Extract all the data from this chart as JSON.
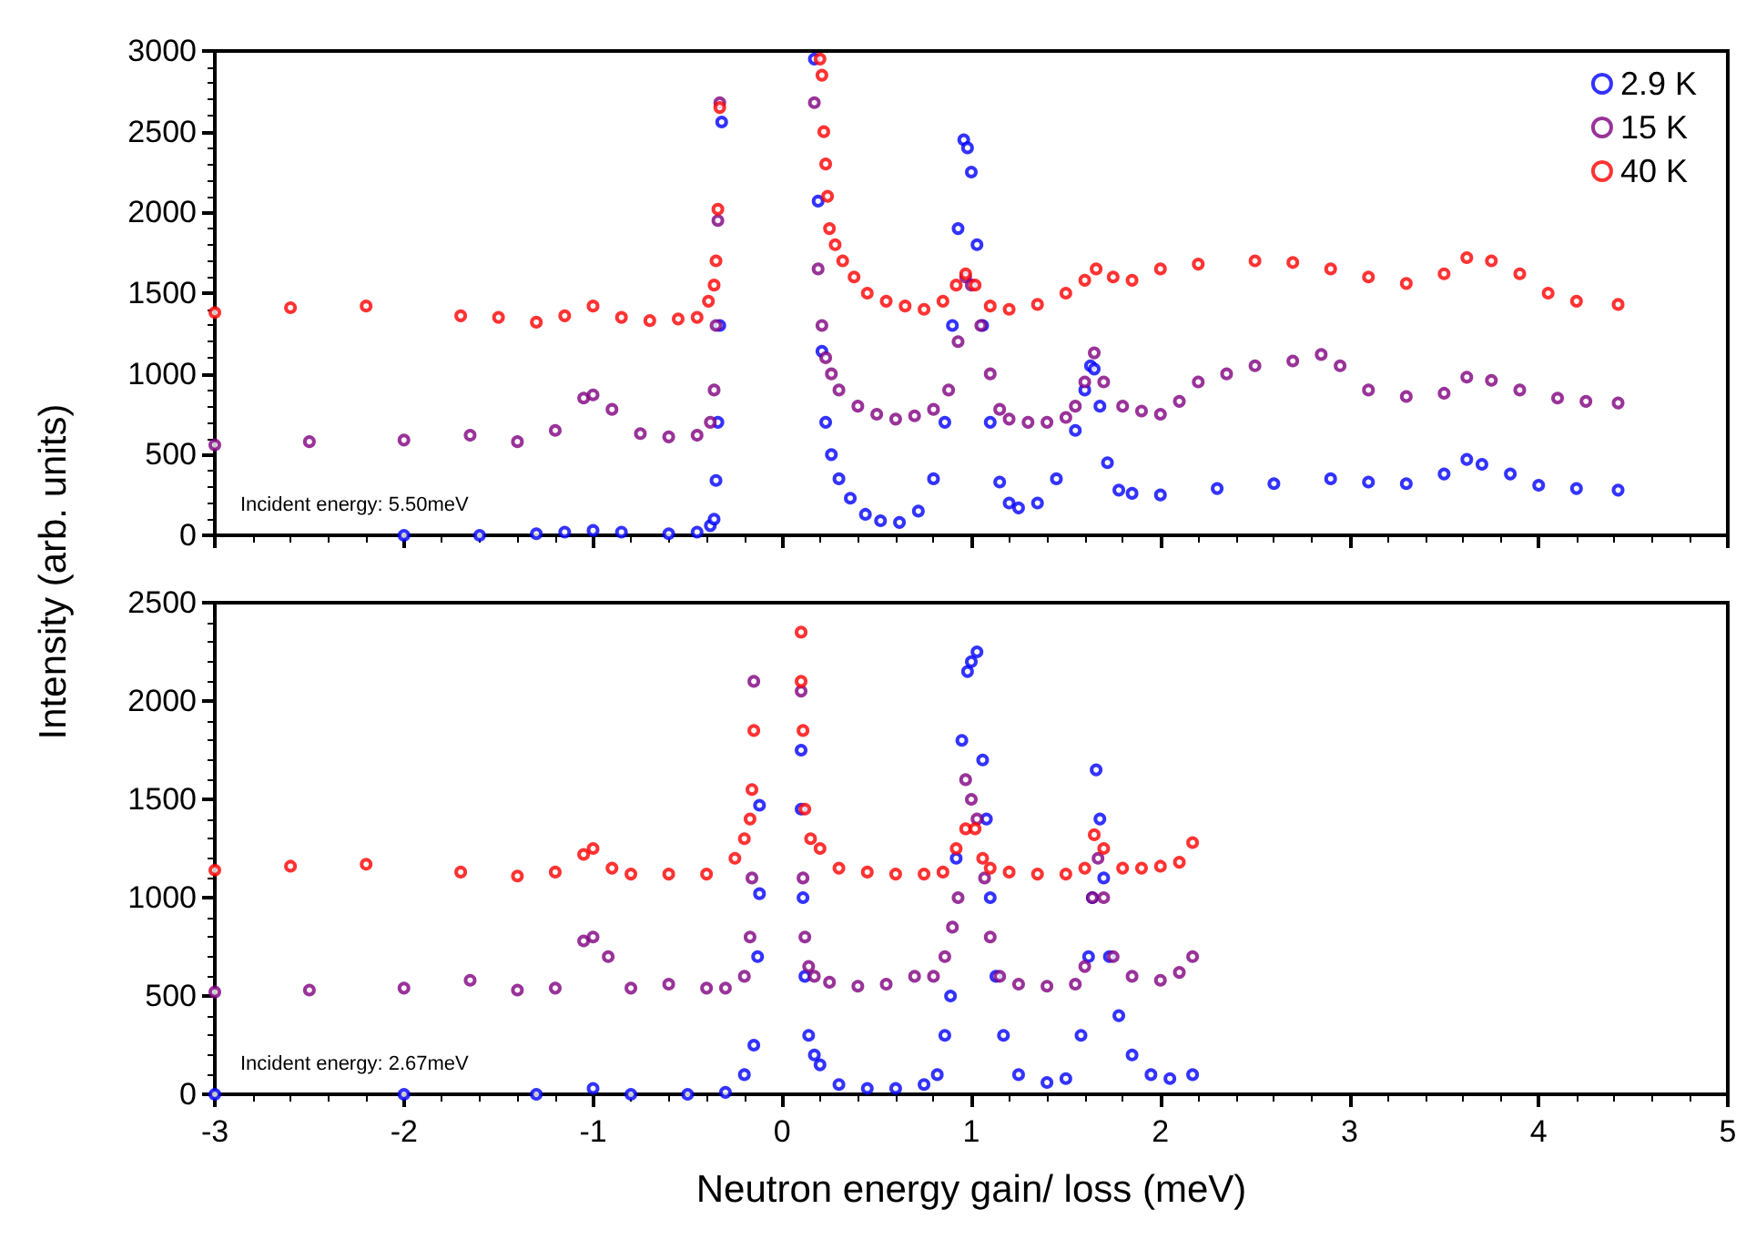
{
  "chart_data": [
    {
      "type": "scatter",
      "ylabel": "Intensity (arb. units)",
      "xlim": [
        -3,
        5
      ],
      "xticks": [
        -3,
        -2,
        -1,
        0,
        1,
        2,
        3,
        4,
        5
      ],
      "ylim": [
        0,
        3000
      ],
      "yticks": [
        0,
        500,
        1000,
        1500,
        2000,
        2500,
        3000
      ],
      "tick_labels": "y",
      "legend": "top right",
      "marker": "circle",
      "annotations": [
        "Incident energy: 5.50meV"
      ],
      "series": [
        {
          "name": "2.9 K",
          "color": "#0000ff",
          "x": [
            -2,
            -1.6,
            -1.3,
            -1.15,
            -1.0,
            -0.85,
            -0.6,
            -0.45,
            -0.38,
            -0.36,
            -0.35,
            -0.34,
            -0.33,
            -0.32,
            0.17,
            0.19,
            0.21,
            0.23,
            0.26,
            0.3,
            0.36,
            0.44,
            0.52,
            0.62,
            0.72,
            0.8,
            0.86,
            0.9,
            0.93,
            0.96,
            0.98,
            1.0,
            1.03,
            1.06,
            1.1,
            1.15,
            1.2,
            1.25,
            1.35,
            1.45,
            1.55,
            1.6,
            1.63,
            1.65,
            1.68,
            1.72,
            1.78,
            1.85,
            2.0,
            2.3,
            2.6,
            2.9,
            3.1,
            3.3,
            3.5,
            3.62,
            3.7,
            3.85,
            4.0,
            4.2,
            4.42
          ],
          "values": [
            0,
            0,
            10,
            20,
            30,
            20,
            10,
            20,
            60,
            100,
            340,
            700,
            1300,
            2560,
            2950,
            2070,
            1140,
            700,
            500,
            350,
            230,
            130,
            90,
            80,
            150,
            350,
            700,
            1300,
            1900,
            2450,
            2400,
            2250,
            1800,
            1300,
            700,
            330,
            200,
            170,
            200,
            350,
            650,
            900,
            1050,
            1030,
            800,
            450,
            280,
            260,
            250,
            290,
            320,
            350,
            330,
            320,
            380,
            470,
            440,
            380,
            310,
            290,
            280
          ]
        },
        {
          "name": "15 K",
          "color": "#800080",
          "x": [
            -3,
            -2.5,
            -2,
            -1.65,
            -1.4,
            -1.2,
            -1.05,
            -1.0,
            -0.9,
            -0.75,
            -0.6,
            -0.45,
            -0.38,
            -0.36,
            -0.35,
            -0.34,
            -0.33,
            0.17,
            0.19,
            0.21,
            0.23,
            0.26,
            0.3,
            0.4,
            0.5,
            0.6,
            0.7,
            0.8,
            0.88,
            0.93,
            0.97,
            1.0,
            1.05,
            1.1,
            1.15,
            1.2,
            1.3,
            1.4,
            1.5,
            1.55,
            1.6,
            1.65,
            1.7,
            1.8,
            1.9,
            2.0,
            2.1,
            2.2,
            2.35,
            2.5,
            2.7,
            2.85,
            2.95,
            3.1,
            3.3,
            3.5,
            3.62,
            3.75,
            3.9,
            4.1,
            4.25,
            4.42
          ],
          "values": [
            560,
            580,
            590,
            620,
            580,
            650,
            850,
            870,
            780,
            630,
            610,
            620,
            700,
            900,
            1300,
            1950,
            2680,
            2680,
            1650,
            1300,
            1100,
            1000,
            900,
            800,
            750,
            720,
            740,
            780,
            900,
            1200,
            1600,
            1550,
            1300,
            1000,
            780,
            720,
            700,
            700,
            730,
            800,
            950,
            1130,
            950,
            800,
            770,
            750,
            830,
            950,
            1000,
            1050,
            1080,
            1120,
            1050,
            900,
            860,
            880,
            980,
            960,
            900,
            850,
            830,
            820
          ]
        },
        {
          "name": "40 K",
          "color": "#ff0000",
          "x": [
            -3,
            -2.6,
            -2.2,
            -1.7,
            -1.5,
            -1.3,
            -1.15,
            -1.0,
            -0.85,
            -0.7,
            -0.55,
            -0.45,
            -0.39,
            -0.36,
            -0.35,
            -0.34,
            -0.33,
            0.2,
            0.21,
            0.22,
            0.23,
            0.24,
            0.25,
            0.28,
            0.32,
            0.38,
            0.45,
            0.55,
            0.65,
            0.75,
            0.85,
            0.92,
            0.97,
            1.02,
            1.1,
            1.2,
            1.35,
            1.5,
            1.6,
            1.66,
            1.75,
            1.85,
            2.0,
            2.2,
            2.5,
            2.7,
            2.9,
            3.1,
            3.3,
            3.5,
            3.62,
            3.75,
            3.9,
            4.05,
            4.2,
            4.42
          ],
          "values": [
            1380,
            1410,
            1420,
            1360,
            1350,
            1320,
            1360,
            1420,
            1350,
            1330,
            1340,
            1350,
            1450,
            1550,
            1700,
            2020,
            2650,
            2950,
            2850,
            2500,
            2300,
            2100,
            1900,
            1800,
            1700,
            1600,
            1500,
            1450,
            1420,
            1400,
            1450,
            1550,
            1620,
            1550,
            1420,
            1400,
            1430,
            1500,
            1580,
            1650,
            1600,
            1580,
            1650,
            1680,
            1700,
            1690,
            1650,
            1600,
            1560,
            1620,
            1720,
            1700,
            1620,
            1500,
            1450,
            1430
          ]
        }
      ]
    },
    {
      "type": "scatter",
      "xlabel": "Neutron energy gain/ loss (meV)",
      "xlim": [
        -3,
        5
      ],
      "xticks": [
        -3,
        -2,
        -1,
        0,
        1,
        2,
        3,
        4,
        5
      ],
      "ylim": [
        0,
        2500
      ],
      "yticks": [
        0,
        500,
        1000,
        1500,
        2000,
        2500
      ],
      "marker": "circle",
      "annotations": [
        "Incident energy: 2.67meV"
      ],
      "series": [
        {
          "color": "#0000ff",
          "x": [
            -3,
            -2,
            -1.3,
            -1.0,
            -0.8,
            -0.5,
            -0.3,
            -0.2,
            -0.15,
            -0.13,
            -0.12,
            -0.12,
            0.1,
            0.1,
            0.11,
            0.12,
            0.14,
            0.17,
            0.2,
            0.3,
            0.45,
            0.6,
            0.75,
            0.82,
            0.86,
            0.89,
            0.92,
            0.95,
            0.98,
            1.0,
            1.03,
            1.06,
            1.08,
            1.1,
            1.13,
            1.17,
            1.25,
            1.4,
            1.5,
            1.58,
            1.62,
            1.64,
            1.66,
            1.68,
            1.7,
            1.73,
            1.78,
            1.85,
            1.95,
            2.05,
            2.17
          ],
          "values": [
            0,
            0,
            0,
            30,
            0,
            0,
            10,
            100,
            250,
            700,
            1470,
            1020,
            1750,
            1450,
            1000,
            600,
            300,
            200,
            150,
            50,
            30,
            30,
            50,
            100,
            300,
            500,
            1200,
            1800,
            2150,
            2200,
            2250,
            1700,
            1400,
            1000,
            600,
            300,
            100,
            60,
            80,
            300,
            700,
            1000,
            1650,
            1400,
            1100,
            700,
            400,
            200,
            100,
            80,
            100
          ]
        },
        {
          "color": "#800080",
          "x": [
            -3,
            -2.5,
            -2,
            -1.65,
            -1.4,
            -1.2,
            -1.05,
            -1.0,
            -0.92,
            -0.8,
            -0.6,
            -0.4,
            -0.3,
            -0.2,
            -0.17,
            -0.16,
            -0.15,
            0.1,
            0.11,
            0.12,
            0.14,
            0.17,
            0.25,
            0.4,
            0.55,
            0.7,
            0.8,
            0.86,
            0.9,
            0.93,
            0.97,
            1.0,
            1.03,
            1.07,
            1.1,
            1.15,
            1.25,
            1.4,
            1.55,
            1.6,
            1.64,
            1.67,
            1.7,
            1.75,
            1.85,
            2.0,
            2.1,
            2.17
          ],
          "values": [
            520,
            530,
            540,
            580,
            530,
            540,
            780,
            800,
            700,
            540,
            560,
            540,
            540,
            600,
            800,
            1100,
            2100,
            2050,
            1100,
            800,
            650,
            600,
            570,
            550,
            560,
            600,
            600,
            700,
            850,
            1000,
            1600,
            1500,
            1400,
            1100,
            800,
            600,
            560,
            550,
            560,
            650,
            1000,
            1200,
            1000,
            700,
            600,
            580,
            620,
            700
          ]
        },
        {
          "color": "#ff0000",
          "x": [
            -3,
            -2.6,
            -2.2,
            -1.7,
            -1.4,
            -1.2,
            -1.05,
            -1.0,
            -0.9,
            -0.8,
            -0.6,
            -0.4,
            -0.25,
            -0.2,
            -0.17,
            -0.16,
            -0.15,
            0.1,
            0.1,
            0.11,
            0.12,
            0.15,
            0.2,
            0.3,
            0.45,
            0.6,
            0.75,
            0.85,
            0.92,
            0.97,
            1.02,
            1.06,
            1.1,
            1.2,
            1.35,
            1.5,
            1.6,
            1.65,
            1.7,
            1.8,
            1.9,
            2.0,
            2.1,
            2.17
          ],
          "values": [
            1140,
            1160,
            1170,
            1130,
            1110,
            1130,
            1220,
            1250,
            1150,
            1120,
            1120,
            1120,
            1200,
            1300,
            1400,
            1550,
            1850,
            2350,
            2100,
            1850,
            1450,
            1300,
            1250,
            1150,
            1130,
            1120,
            1120,
            1130,
            1250,
            1350,
            1350,
            1200,
            1150,
            1130,
            1120,
            1120,
            1150,
            1320,
            1250,
            1150,
            1150,
            1160,
            1180,
            1280
          ]
        }
      ]
    }
  ]
}
